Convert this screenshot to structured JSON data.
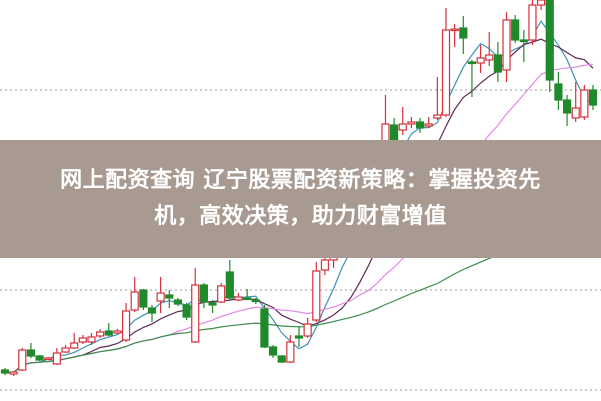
{
  "banner": {
    "title_line1": "网上配资查询 辽宁股票配资新策略：掌握投资先",
    "title_line2": "机，高效决策，助力财富增值",
    "background_color": "#a89a90"
  },
  "chart_data": {
    "type": "candlestick",
    "title": "",
    "grid": "horizontal dotted",
    "gridlines": [
      11,
      21,
      31,
      41
    ],
    "ylim": [
      10,
      50
    ],
    "colors": {
      "up": "#d7303a",
      "down": "#1f8a2b",
      "ma5": "#3b93b5",
      "ma10": "#5c2a55",
      "ma20": "#e28be6",
      "ma60": "#3c8c4a"
    },
    "moving_averages": [
      5,
      10,
      20,
      60
    ],
    "ohlc": [
      [
        13.0,
        13.2,
        12.5,
        12.7
      ],
      [
        12.6,
        12.9,
        12.4,
        12.8
      ],
      [
        13.0,
        15.2,
        12.9,
        15.0
      ],
      [
        15.0,
        15.7,
        14.2,
        14.4
      ],
      [
        14.4,
        14.5,
        13.9,
        14.0
      ],
      [
        14.2,
        14.3,
        14.1,
        14.2
      ],
      [
        13.6,
        15.2,
        13.5,
        14.7
      ],
      [
        14.8,
        15.5,
        14.7,
        15.2
      ],
      [
        15.2,
        16.7,
        15.1,
        15.7
      ],
      [
        15.8,
        16.5,
        15.6,
        16.2
      ],
      [
        15.8,
        16.7,
        15.5,
        16.3
      ],
      [
        16.4,
        17.1,
        16.2,
        16.8
      ],
      [
        16.9,
        17.7,
        16.4,
        16.5
      ],
      [
        16.7,
        17.1,
        16.6,
        16.9
      ],
      [
        16.0,
        19.7,
        15.8,
        18.9
      ],
      [
        19.0,
        22.3,
        18.8,
        20.8
      ],
      [
        21.0,
        21.1,
        19.0,
        19.3
      ],
      [
        19.2,
        19.5,
        17.8,
        18.7
      ],
      [
        19.9,
        22.3,
        18.7,
        20.7
      ],
      [
        20.5,
        21.0,
        19.2,
        20.2
      ],
      [
        20.0,
        20.2,
        19.4,
        19.6
      ],
      [
        19.5,
        19.7,
        18.0,
        18.3
      ],
      [
        15.8,
        23.2,
        15.7,
        21.5
      ],
      [
        21.5,
        21.7,
        19.2,
        19.8
      ],
      [
        19.7,
        20.0,
        18.7,
        19.5
      ],
      [
        19.8,
        21.7,
        19.7,
        21.4
      ],
      [
        22.8,
        24.0,
        20.0,
        20.2
      ],
      [
        20.0,
        20.7,
        19.9,
        20.3
      ],
      [
        20.2,
        21.1,
        20.0,
        20.1
      ],
      [
        20.0,
        20.2,
        19.6,
        19.9
      ],
      [
        19.1,
        19.5,
        15.2,
        15.3
      ],
      [
        15.3,
        15.5,
        14.2,
        14.5
      ],
      [
        14.4,
        14.5,
        13.7,
        13.8
      ],
      [
        13.8,
        16.5,
        13.7,
        15.8
      ],
      [
        16.4,
        17.4,
        15.3,
        16.2
      ],
      [
        16.4,
        18.2,
        16.2,
        17.6
      ],
      [
        18.0,
        23.8,
        17.8,
        22.9
      ],
      [
        23.0,
        24.5,
        22.5,
        24.0
      ],
      [
        24.0,
        25.5,
        23.2,
        25.0
      ],
      [
        25.0,
        27.0,
        24.5,
        26.8
      ],
      [
        26.8,
        28.0,
        25.8,
        26.0
      ],
      [
        26.0,
        29.5,
        25.8,
        29.0
      ],
      [
        29.0,
        31.0,
        28.5,
        30.5
      ],
      [
        30.5,
        34.5,
        30.0,
        34.0
      ],
      [
        35.0,
        40.5,
        34.0,
        37.6
      ],
      [
        37.5,
        38.2,
        35.5,
        36.0
      ],
      [
        37.0,
        39.3,
        36.5,
        37.6
      ],
      [
        37.6,
        38.3,
        37.2,
        37.8
      ],
      [
        37.8,
        38.2,
        36.7,
        37.2
      ],
      [
        37.4,
        38.3,
        37.2,
        37.6
      ],
      [
        38.2,
        42.3,
        38.0,
        38.5
      ],
      [
        38.5,
        49.2,
        38.3,
        47.0
      ],
      [
        47.0,
        47.6,
        45.3,
        47.1
      ],
      [
        47.2,
        48.4,
        44.6,
        46.2
      ],
      [
        43.8,
        44.0,
        40.3,
        43.7
      ],
      [
        43.7,
        45.5,
        42.7,
        44.2
      ],
      [
        44.0,
        46.8,
        43.4,
        44.5
      ],
      [
        44.5,
        45.8,
        41.8,
        42.8
      ],
      [
        43.0,
        48.8,
        41.8,
        48.0
      ],
      [
        48.0,
        48.5,
        45.7,
        46.0
      ],
      [
        46.0,
        47.0,
        43.8,
        45.9
      ],
      [
        46.0,
        50.0,
        45.5,
        49.5
      ],
      [
        49.5,
        50.0,
        49.0,
        50.0
      ],
      [
        50.0,
        50.0,
        40.8,
        42.0
      ],
      [
        41.6,
        42.8,
        39.0,
        40.0
      ],
      [
        40.0,
        40.5,
        37.4,
        38.7
      ],
      [
        38.2,
        41.8,
        37.8,
        39.2
      ],
      [
        38.3,
        41.5,
        38.0,
        41.0
      ],
      [
        41.0,
        41.5,
        39.0,
        39.5
      ]
    ]
  }
}
